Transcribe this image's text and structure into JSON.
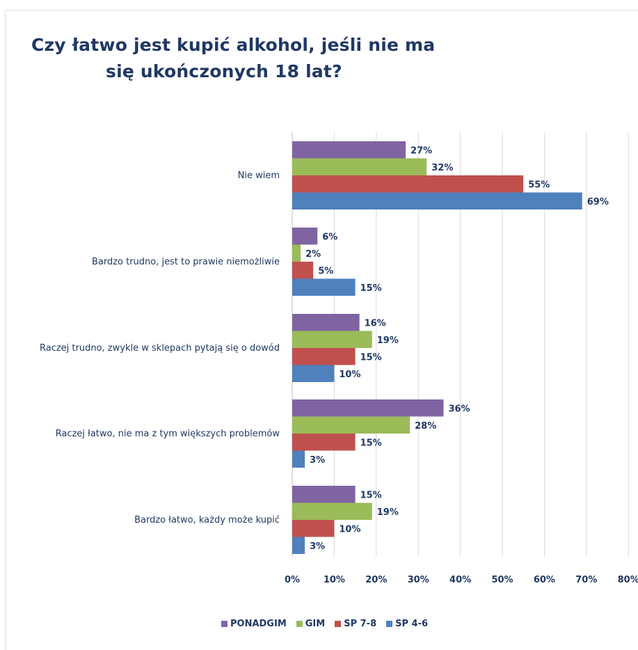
{
  "chart_data": {
    "type": "bar",
    "orientation": "horizontal",
    "title": "Czy łatwo jest kupić alkohol, jeśli nie ma się ukończonych 18 lat?",
    "title_lines": [
      "Czy łatwo jest kupić alkohol, jeśli nie ma",
      "się ukończonych 18 lat?"
    ],
    "categories": [
      "Nie wiem",
      "Bardzo trudno, jest to prawie niemożliwie",
      "Raczej trudno, zwykle w sklepach pytają się o dowód",
      "Raczej łatwo, nie ma z tym większych problemów",
      "Bardzo łatwo, każdy może kupić"
    ],
    "series": [
      {
        "name": "PONADGIM",
        "color": "#8064a2",
        "values": [
          27,
          6,
          16,
          36,
          15
        ]
      },
      {
        "name": "GIM",
        "color": "#9bbb59",
        "values": [
          32,
          2,
          19,
          28,
          19
        ]
      },
      {
        "name": "SP 7-8",
        "color": "#c0504d",
        "values": [
          55,
          5,
          15,
          15,
          10
        ]
      },
      {
        "name": "SP 4-6",
        "color": "#4f81bd",
        "values": [
          69,
          15,
          10,
          3,
          3
        ]
      }
    ],
    "value_suffix": "%",
    "x_ticks": [
      "0%",
      "10%",
      "20%",
      "30%",
      "40%",
      "50%",
      "60%",
      "70%",
      "80%"
    ],
    "xlim": [
      0,
      80
    ],
    "grid": true,
    "legend": "bottom"
  }
}
